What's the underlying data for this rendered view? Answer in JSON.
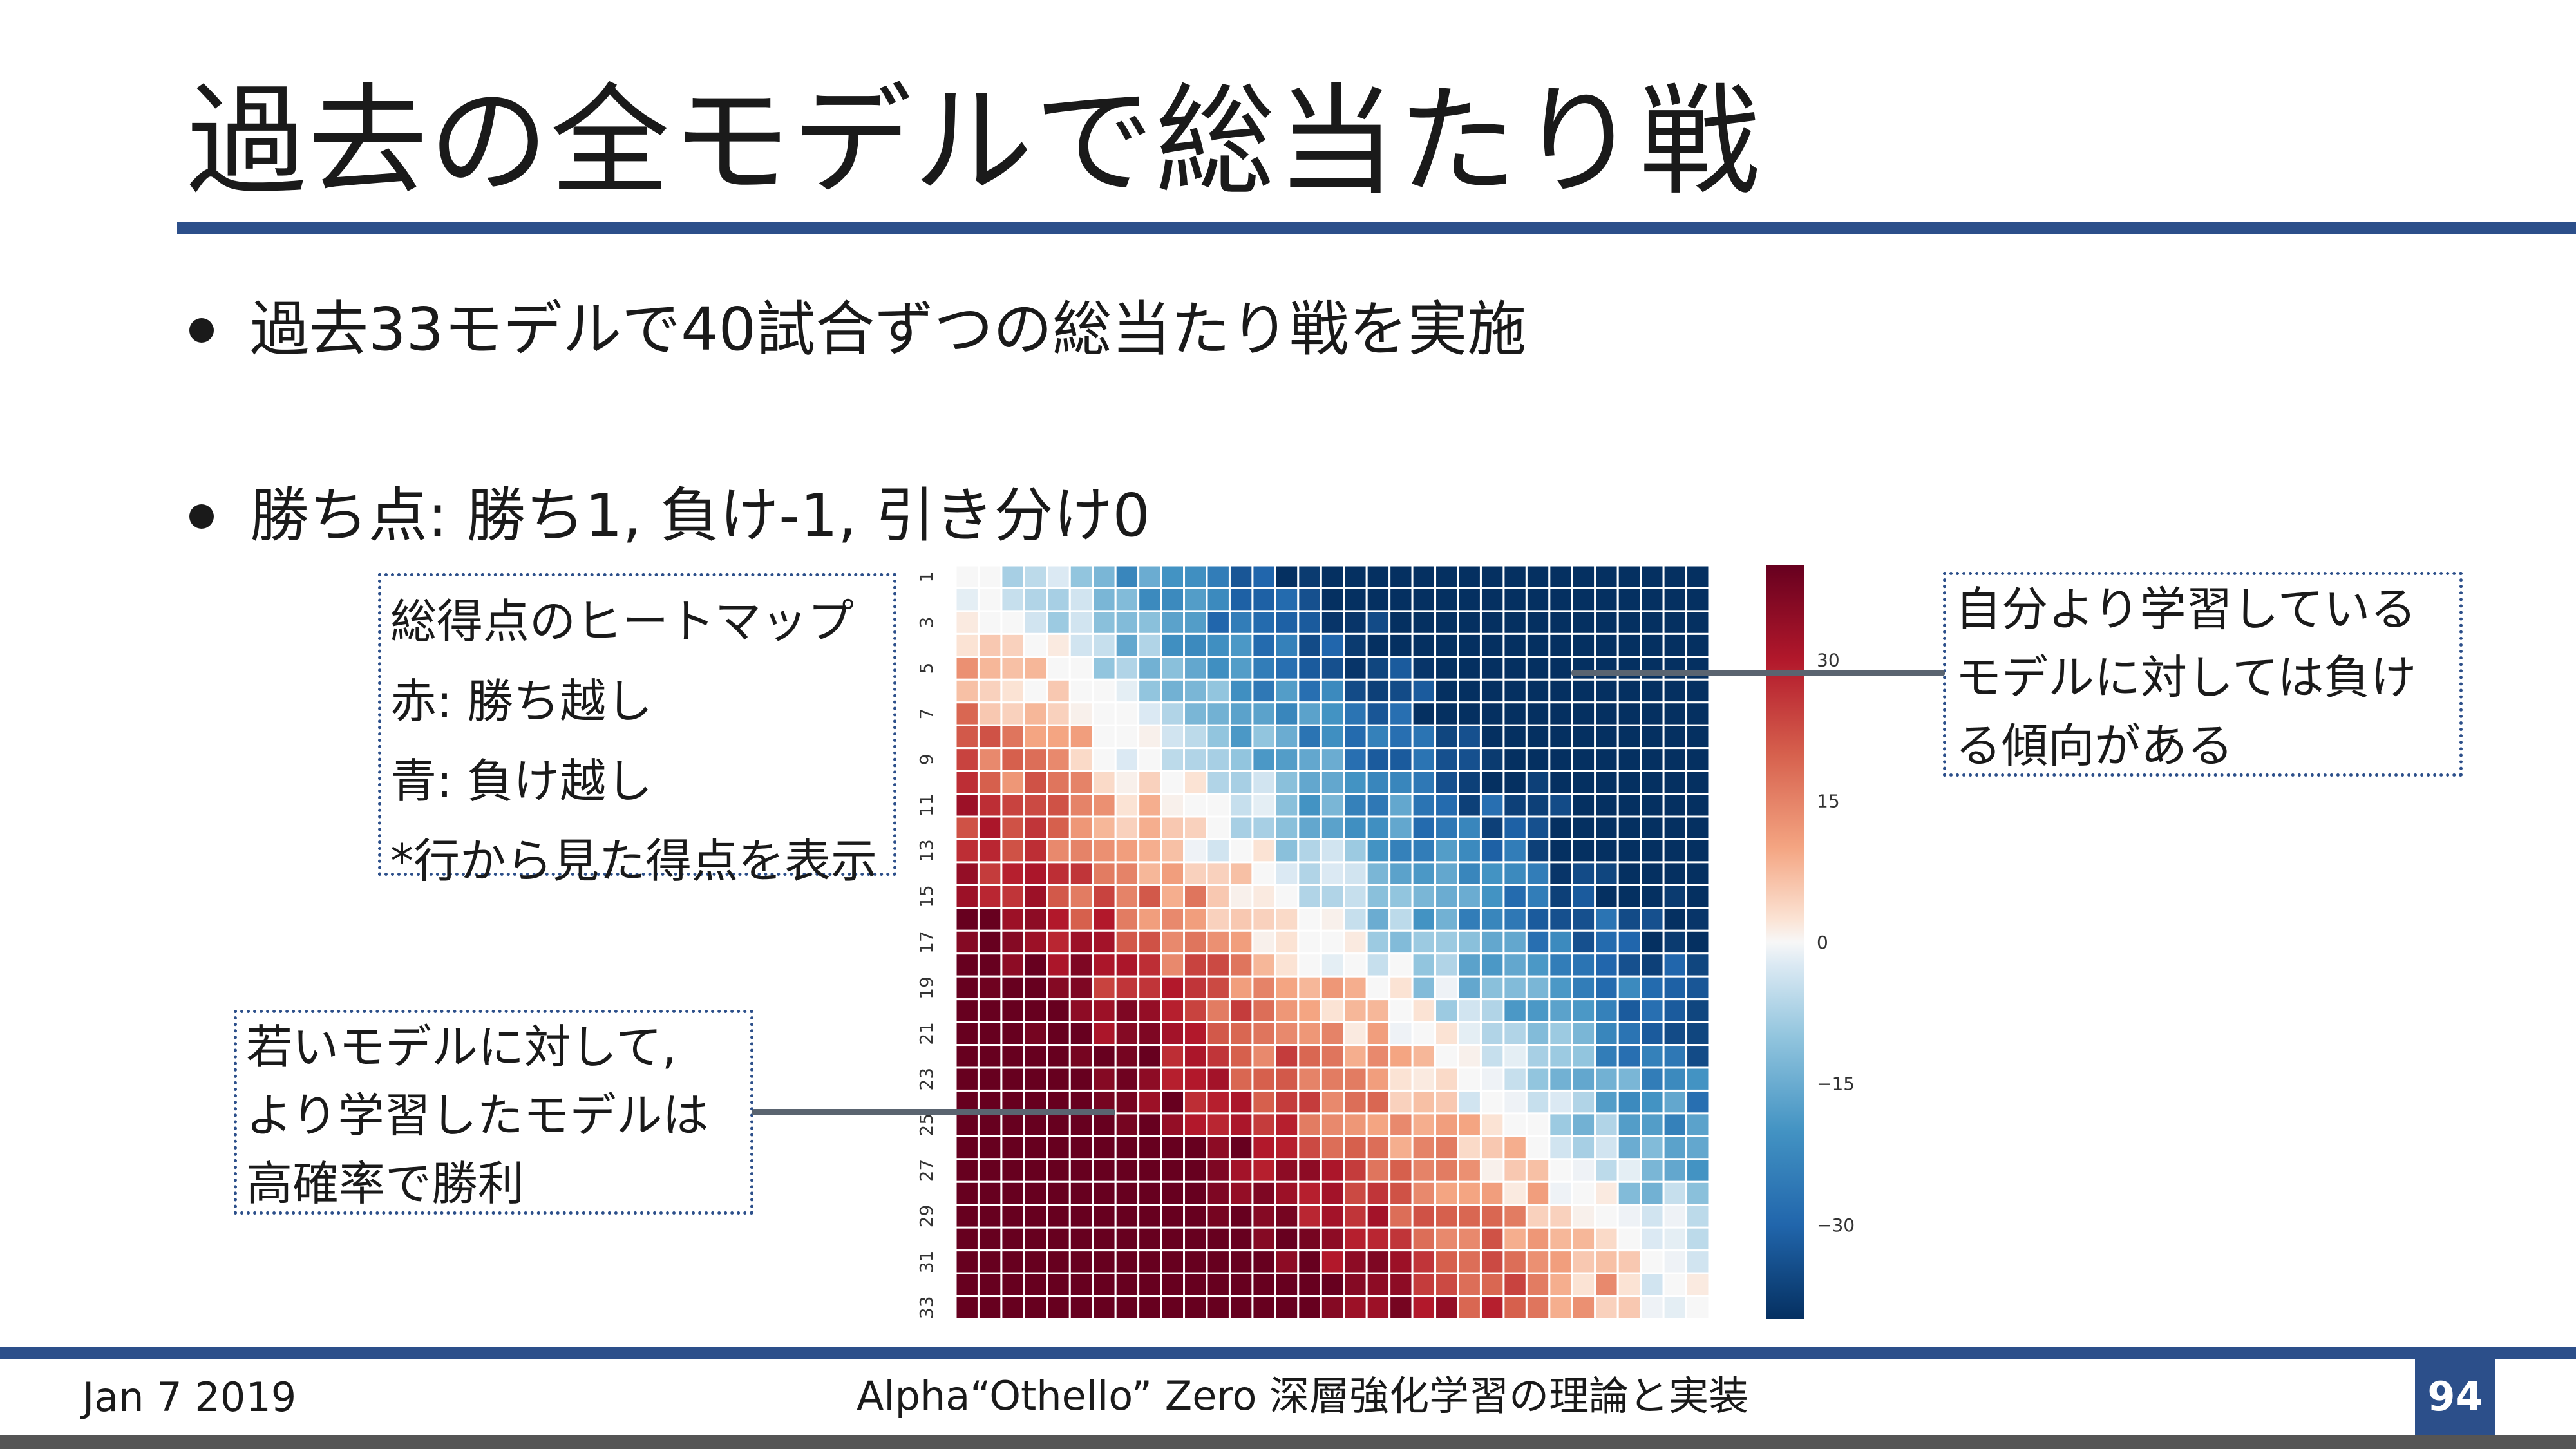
{
  "slide": {
    "title": "過去の全モデルで総当たり戦",
    "bullets": [
      "過去33モデルで40試合ずつの総当たり戦を実施",
      "勝ち点: 勝ち1, 負け-1, 引き分け0"
    ]
  },
  "callouts": {
    "legend": [
      "総得点のヒートマップ",
      "赤: 勝ち越し",
      "青: 負け越し",
      "*行から見た得点を表示"
    ],
    "young_vs_trained": [
      "若いモデルに対して,",
      "より学習したモデルは",
      "高確率で勝利"
    ],
    "trained_vs_self": [
      "自分より学習している",
      "モデルに対しては負け",
      "る傾向がある"
    ]
  },
  "footer": {
    "date": "Jan 7 2019",
    "title": "Alpha“Othello” Zero  深層強化学習の理論と実装",
    "page_number": "94"
  },
  "colors": {
    "accent": "#2c4f8a",
    "heatmap_positive": "#67001f",
    "heatmap_negative": "#053061",
    "heatmap_zero": "#f7f7f7"
  },
  "chart_data": {
    "type": "heatmap",
    "title": "",
    "xlabel": "",
    "ylabel": "",
    "size": 33,
    "x_ticks": [
      "1",
      "3",
      "5",
      "7",
      "9",
      "11",
      "13",
      "15",
      "17",
      "19",
      "21",
      "23",
      "25",
      "27",
      "29",
      "31",
      "33"
    ],
    "y_ticks": [
      "1",
      "3",
      "5",
      "7",
      "9",
      "11",
      "13",
      "15",
      "17",
      "19",
      "21",
      "23",
      "25",
      "27",
      "29",
      "31",
      "33"
    ],
    "colorbar": {
      "colormap": "RdBu_r",
      "vmin": -40,
      "vmax": 40,
      "ticks": [
        "30",
        "15",
        "0",
        "−15",
        "−30"
      ],
      "tick_values": [
        30,
        15,
        0,
        -15,
        -30
      ]
    },
    "value_model": "matrix[i][j] ≈ round(2.6 * (i - j)), clipped to [-40, 40]; diagonal 0"
  }
}
